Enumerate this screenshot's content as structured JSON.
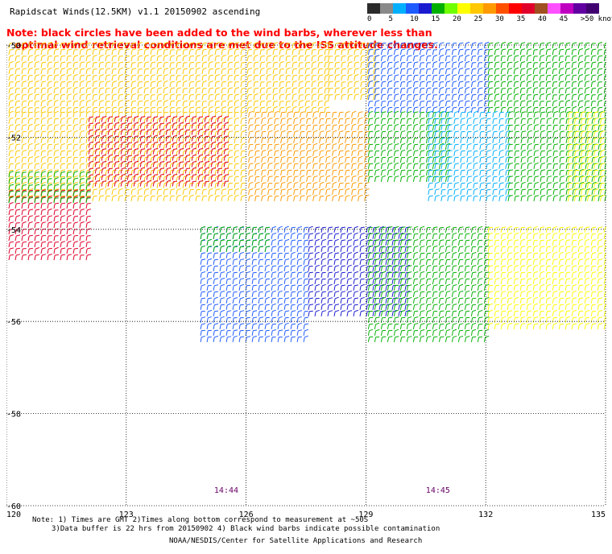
{
  "title": "Rapidscat Winds(12.5KM) v1.1 20150902 ascending",
  "note_line1": "Note: black circles have been added to the wind barbs, wherever less than",
  "note_line2": "optimal wind retrieval conditions are met due to the ISS attitude changes.",
  "colorbar": {
    "labels": [
      "0",
      "5",
      "10",
      "15",
      "20",
      "25",
      "30",
      "35",
      "40",
      "45",
      ">50 knots"
    ],
    "colors": [
      "#2b2b2b",
      "#8a8a8a",
      "#00b0ff",
      "#1e5bff",
      "#1a1ad0",
      "#00b000",
      "#70ff00",
      "#ffff00",
      "#ffc800",
      "#ff9a00",
      "#ff5000",
      "#ff0000",
      "#e0002a",
      "#a05020",
      "#ff50ff",
      "#c000c0",
      "#6000a0",
      "#400070"
    ]
  },
  "map": {
    "lon_ticks": [
      "120",
      "123",
      "126",
      "129",
      "132",
      "135"
    ],
    "lat_ticks": [
      "-50",
      "-52",
      "-54",
      "-56",
      "-58",
      "-60"
    ],
    "lon_range": [
      120,
      135
    ],
    "lat_range": [
      -60,
      -50
    ],
    "time_labels": [
      {
        "text": "14:44",
        "lon": 125.2
      },
      {
        "text": "14:45",
        "lon": 130.5
      }
    ],
    "label_color": "#660066",
    "wind_regions": [
      {
        "lon": [
          120,
          128
        ],
        "lat": [
          -51.5,
          -50
        ],
        "color": "#ffc800"
      },
      {
        "lon": [
          120,
          126
        ],
        "lat": [
          -53.5,
          -51.5
        ],
        "color": "#ffc800"
      },
      {
        "lon": [
          122,
          125.5
        ],
        "lat": [
          -53.2,
          -51.6
        ],
        "color": "#e0002a"
      },
      {
        "lon": [
          120,
          122
        ],
        "lat": [
          -54.8,
          -53.2
        ],
        "color": "#e0002a"
      },
      {
        "lon": [
          120,
          122
        ],
        "lat": [
          -53.5,
          -52.8
        ],
        "color": "#00b000"
      },
      {
        "lon": [
          126,
          129
        ],
        "lat": [
          -53.5,
          -51.5
        ],
        "color": "#ff9a00"
      },
      {
        "lon": [
          128,
          129.2
        ],
        "lat": [
          -51.2,
          -50
        ],
        "color": "#ffc800"
      },
      {
        "lon": [
          129,
          132
        ],
        "lat": [
          -51.5,
          -50
        ],
        "color": "#1e5bff"
      },
      {
        "lon": [
          132,
          135
        ],
        "lat": [
          -51.5,
          -50
        ],
        "color": "#00b000"
      },
      {
        "lon": [
          129,
          131
        ],
        "lat": [
          -53,
          -51.5
        ],
        "color": "#00b000"
      },
      {
        "lon": [
          130.5,
          132.5
        ],
        "lat": [
          -53.5,
          -51.5
        ],
        "color": "#00b0ff"
      },
      {
        "lon": [
          132.5,
          135
        ],
        "lat": [
          -53.5,
          -51.5
        ],
        "color": "#00b000"
      },
      {
        "lon": [
          134,
          135
        ],
        "lat": [
          -53.5,
          -51.5
        ],
        "color": "#ffff00"
      },
      {
        "lon": [
          124.8,
          127.5
        ],
        "lat": [
          -56.5,
          -54
        ],
        "color": "#1e5bff"
      },
      {
        "lon": [
          124.8,
          126.5
        ],
        "lat": [
          -54.5,
          -54
        ],
        "color": "#00b000"
      },
      {
        "lon": [
          127.5,
          130
        ],
        "lat": [
          -56,
          -54
        ],
        "color": "#1a1ad0"
      },
      {
        "lon": [
          129,
          132
        ],
        "lat": [
          -56.5,
          -54
        ],
        "color": "#00b000"
      },
      {
        "lon": [
          132,
          135
        ],
        "lat": [
          -56.2,
          -54
        ],
        "color": "#ffff00"
      }
    ]
  },
  "footer_line1": "Note: 1) Times are GMT 2)Times along bottom correspond to measurement at ~50S",
  "footer_line2": "3)Data buffer is 22 hrs from 20150902 4) Black wind barbs indicate possible contamination",
  "footer_line3": "NOAA/NESDIS/Center for Satellite Applications and Research"
}
